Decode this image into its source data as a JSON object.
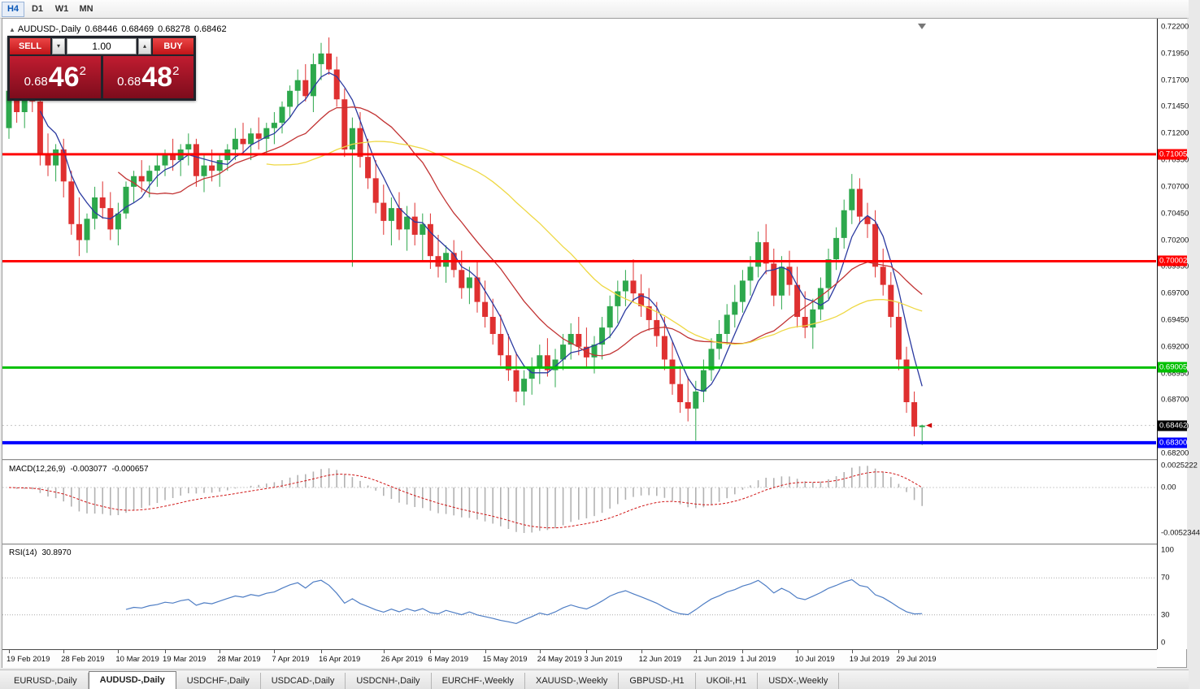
{
  "window": {
    "timeframes": [
      {
        "label": "H4",
        "active": true
      },
      {
        "label": "D1",
        "active": false
      },
      {
        "label": "W1",
        "active": false
      },
      {
        "label": "MN",
        "active": false
      }
    ]
  },
  "icons": {
    "instrument": "▲",
    "spinner_down": "▾",
    "spinner_up": "▴"
  },
  "quote_bar": {
    "symbol": "AUDUSD-,Daily",
    "open": "0.68446",
    "high": "0.68469",
    "low": "0.68278",
    "close": "0.68462"
  },
  "trade_panel": {
    "sell_label": "SELL",
    "buy_label": "BUY",
    "volume": "1.00",
    "sell_price": {
      "prefix": "0.68",
      "big": "46",
      "sup": "2"
    },
    "buy_price": {
      "prefix": "0.68",
      "big": "48",
      "sup": "2"
    }
  },
  "indicators": {
    "macd": {
      "label": "MACD(12,26,9)",
      "value_main": "-0.003077",
      "value_signal": "-0.000657",
      "axis_labels": [
        "0.0025222",
        "0.00",
        "-0.0052344"
      ]
    },
    "rsi": {
      "label": "RSI(14)",
      "value": "30.8970",
      "axis_labels": [
        "100",
        "70",
        "30",
        "0"
      ]
    }
  },
  "tabs": [
    {
      "label": "EURUSD-,Daily",
      "active": false
    },
    {
      "label": "AUDUSD-,Daily",
      "active": true
    },
    {
      "label": "USDCHF-,Daily",
      "active": false
    },
    {
      "label": "USDCAD-,Daily",
      "active": false
    },
    {
      "label": "USDCNH-,Daily",
      "active": false
    },
    {
      "label": "EURCHF-,Weekly",
      "active": false
    },
    {
      "label": "XAUUSD-,Weekly",
      "active": false
    },
    {
      "label": "GBPUSD-,H1",
      "active": false
    },
    {
      "label": "UKOil-,H1",
      "active": false
    },
    {
      "label": "USDX-,Weekly",
      "active": false
    }
  ],
  "chart_data": {
    "type": "candlestick",
    "symbol": "AUDUSD-,Daily",
    "y_axis": {
      "min": 0.682,
      "max": 0.722,
      "tick_labels": [
        "0.72200",
        "0.71950",
        "0.71700",
        "0.71450",
        "0.71200",
        "0.70950",
        "0.70700",
        "0.70450",
        "0.70200",
        "0.69950",
        "0.69700",
        "0.69450",
        "0.69200",
        "0.68950",
        "0.68700",
        "0.68450",
        "0.68200"
      ]
    },
    "x_ticks": [
      {
        "bar": 0,
        "label": "19 Feb 2019"
      },
      {
        "bar": 7,
        "label": "28 Feb 2019"
      },
      {
        "bar": 14,
        "label": "10 Mar 2019"
      },
      {
        "bar": 20,
        "label": "19 Mar 2019"
      },
      {
        "bar": 27,
        "label": "28 Mar 2019"
      },
      {
        "bar": 34,
        "label": "7 Apr 2019"
      },
      {
        "bar": 40,
        "label": "16 Apr 2019"
      },
      {
        "bar": 48,
        "label": "26 Apr 2019"
      },
      {
        "bar": 54,
        "label": "6 May 2019"
      },
      {
        "bar": 61,
        "label": "15 May 2019"
      },
      {
        "bar": 68,
        "label": "24 May 2019"
      },
      {
        "bar": 74,
        "label": "3 Jun 2019"
      },
      {
        "bar": 81,
        "label": "12 Jun 2019"
      },
      {
        "bar": 88,
        "label": "21 Jun 2019"
      },
      {
        "bar": 94,
        "label": "1 Jul 2019"
      },
      {
        "bar": 101,
        "label": "10 Jul 2019"
      },
      {
        "bar": 108,
        "label": "19 Jul 2019"
      },
      {
        "bar": 114,
        "label": "29 Jul 2019"
      }
    ],
    "candles": [
      [
        0.7125,
        0.717,
        0.7115,
        0.716
      ],
      [
        0.716,
        0.7172,
        0.713,
        0.714
      ],
      [
        0.714,
        0.7165,
        0.7125,
        0.7155
      ],
      [
        0.7155,
        0.717,
        0.714,
        0.715
      ],
      [
        0.715,
        0.716,
        0.709,
        0.71
      ],
      [
        0.71,
        0.712,
        0.708,
        0.709
      ],
      [
        0.709,
        0.711,
        0.7075,
        0.7105
      ],
      [
        0.7105,
        0.7115,
        0.706,
        0.7075
      ],
      [
        0.7075,
        0.7085,
        0.7025,
        0.7035
      ],
      [
        0.7035,
        0.706,
        0.7005,
        0.702
      ],
      [
        0.702,
        0.7045,
        0.7008,
        0.704
      ],
      [
        0.704,
        0.707,
        0.703,
        0.706
      ],
      [
        0.706,
        0.7075,
        0.704,
        0.705
      ],
      [
        0.705,
        0.7065,
        0.702,
        0.703
      ],
      [
        0.703,
        0.7055,
        0.7015,
        0.7045
      ],
      [
        0.7045,
        0.7075,
        0.704,
        0.707
      ],
      [
        0.707,
        0.7085,
        0.7055,
        0.708
      ],
      [
        0.708,
        0.7095,
        0.7065,
        0.7075
      ],
      [
        0.7075,
        0.709,
        0.706,
        0.7085
      ],
      [
        0.7085,
        0.71,
        0.707,
        0.709
      ],
      [
        0.709,
        0.7105,
        0.708,
        0.71
      ],
      [
        0.71,
        0.7115,
        0.7085,
        0.7095
      ],
      [
        0.7095,
        0.711,
        0.708,
        0.7105
      ],
      [
        0.7105,
        0.712,
        0.709,
        0.711
      ],
      [
        0.711,
        0.7115,
        0.707,
        0.708
      ],
      [
        0.708,
        0.71,
        0.7065,
        0.709
      ],
      [
        0.709,
        0.7105,
        0.7075,
        0.7085
      ],
      [
        0.7085,
        0.71,
        0.707,
        0.7095
      ],
      [
        0.7095,
        0.711,
        0.7085,
        0.7105
      ],
      [
        0.7105,
        0.7125,
        0.7095,
        0.7115
      ],
      [
        0.7115,
        0.713,
        0.71,
        0.711
      ],
      [
        0.711,
        0.7125,
        0.7095,
        0.712
      ],
      [
        0.712,
        0.7135,
        0.7105,
        0.7115
      ],
      [
        0.7115,
        0.713,
        0.71,
        0.7125
      ],
      [
        0.7125,
        0.714,
        0.711,
        0.713
      ],
      [
        0.713,
        0.715,
        0.712,
        0.7145
      ],
      [
        0.7145,
        0.7165,
        0.7135,
        0.716
      ],
      [
        0.716,
        0.718,
        0.7145,
        0.717
      ],
      [
        0.717,
        0.7185,
        0.715,
        0.7155
      ],
      [
        0.7155,
        0.7195,
        0.714,
        0.7185
      ],
      [
        0.7185,
        0.7205,
        0.717,
        0.7195
      ],
      [
        0.7195,
        0.721,
        0.7175,
        0.718
      ],
      [
        0.718,
        0.7192,
        0.7145,
        0.7152
      ],
      [
        0.7152,
        0.7162,
        0.7098,
        0.7105
      ],
      [
        0.7105,
        0.7135,
        0.6995,
        0.7125
      ],
      [
        0.7125,
        0.714,
        0.7088,
        0.7098
      ],
      [
        0.7098,
        0.7115,
        0.7068,
        0.7078
      ],
      [
        0.7078,
        0.7095,
        0.7045,
        0.7055
      ],
      [
        0.7055,
        0.7072,
        0.7025,
        0.7038
      ],
      [
        0.7038,
        0.706,
        0.7015,
        0.705
      ],
      [
        0.705,
        0.7065,
        0.702,
        0.703
      ],
      [
        0.703,
        0.7052,
        0.701,
        0.7042
      ],
      [
        0.7042,
        0.7055,
        0.7015,
        0.7025
      ],
      [
        0.7025,
        0.7045,
        0.7,
        0.7035
      ],
      [
        0.7035,
        0.7045,
        0.6993,
        0.7005
      ],
      [
        0.7005,
        0.7025,
        0.6985,
        0.6995
      ],
      [
        0.6995,
        0.7015,
        0.698,
        0.7008
      ],
      [
        0.7008,
        0.702,
        0.6985,
        0.6992
      ],
      [
        0.6992,
        0.701,
        0.6965,
        0.6975
      ],
      [
        0.6975,
        0.6995,
        0.696,
        0.6985
      ],
      [
        0.6985,
        0.7,
        0.6952,
        0.6962
      ],
      [
        0.6962,
        0.6982,
        0.6938,
        0.6948
      ],
      [
        0.6948,
        0.6965,
        0.6922,
        0.6932
      ],
      [
        0.6932,
        0.695,
        0.6902,
        0.6912
      ],
      [
        0.6912,
        0.6932,
        0.6888,
        0.6898
      ],
      [
        0.6898,
        0.6915,
        0.6868,
        0.6878
      ],
      [
        0.6878,
        0.6898,
        0.6865,
        0.689
      ],
      [
        0.689,
        0.691,
        0.6875,
        0.69
      ],
      [
        0.69,
        0.6922,
        0.6885,
        0.6912
      ],
      [
        0.6912,
        0.6928,
        0.6892,
        0.6898
      ],
      [
        0.6898,
        0.6918,
        0.6882,
        0.6908
      ],
      [
        0.6908,
        0.6932,
        0.6898,
        0.6922
      ],
      [
        0.6922,
        0.6942,
        0.6908,
        0.6932
      ],
      [
        0.6932,
        0.6948,
        0.6912,
        0.692
      ],
      [
        0.692,
        0.6938,
        0.69,
        0.691
      ],
      [
        0.691,
        0.693,
        0.6895,
        0.6922
      ],
      [
        0.6922,
        0.6948,
        0.6908,
        0.6938
      ],
      [
        0.6938,
        0.6968,
        0.6928,
        0.6958
      ],
      [
        0.6958,
        0.6982,
        0.6942,
        0.6972
      ],
      [
        0.6972,
        0.6992,
        0.6958,
        0.6982
      ],
      [
        0.6982,
        0.7002,
        0.6962,
        0.697
      ],
      [
        0.697,
        0.6988,
        0.6948,
        0.6958
      ],
      [
        0.6958,
        0.6975,
        0.6935,
        0.6945
      ],
      [
        0.6945,
        0.6962,
        0.692,
        0.693
      ],
      [
        0.693,
        0.6948,
        0.6898,
        0.6908
      ],
      [
        0.6908,
        0.6925,
        0.6875,
        0.6885
      ],
      [
        0.6885,
        0.6902,
        0.6858,
        0.6868
      ],
      [
        0.6868,
        0.6892,
        0.685,
        0.6862
      ],
      [
        0.6862,
        0.6888,
        0.6832,
        0.6878
      ],
      [
        0.6878,
        0.6908,
        0.6868,
        0.6898
      ],
      [
        0.6898,
        0.6928,
        0.6888,
        0.6918
      ],
      [
        0.6918,
        0.6945,
        0.6908,
        0.6932
      ],
      [
        0.6932,
        0.696,
        0.6922,
        0.695
      ],
      [
        0.695,
        0.6978,
        0.6938,
        0.6962
      ],
      [
        0.6962,
        0.6992,
        0.6952,
        0.6982
      ],
      [
        0.6982,
        0.7005,
        0.6968,
        0.6995
      ],
      [
        0.6995,
        0.7028,
        0.6985,
        0.7018
      ],
      [
        0.7018,
        0.7035,
        0.6988,
        0.6998
      ],
      [
        0.6998,
        0.7012,
        0.6958,
        0.6968
      ],
      [
        0.6968,
        0.7005,
        0.6955,
        0.6995
      ],
      [
        0.6995,
        0.701,
        0.6968,
        0.6978
      ],
      [
        0.6978,
        0.6995,
        0.6938,
        0.6948
      ],
      [
        0.6948,
        0.6972,
        0.6928,
        0.6938
      ],
      [
        0.6938,
        0.6965,
        0.6918,
        0.6955
      ],
      [
        0.6955,
        0.6985,
        0.6945,
        0.6975
      ],
      [
        0.6975,
        0.7012,
        0.6965,
        0.7002
      ],
      [
        0.7002,
        0.7032,
        0.6992,
        0.7022
      ],
      [
        0.7022,
        0.7058,
        0.7012,
        0.7048
      ],
      [
        0.7048,
        0.7082,
        0.7035,
        0.7068
      ],
      [
        0.7068,
        0.7078,
        0.7035,
        0.7042
      ],
      [
        0.7042,
        0.7055,
        0.7022,
        0.7035
      ],
      [
        0.7035,
        0.7048,
        0.6985,
        0.6995
      ],
      [
        0.6995,
        0.7012,
        0.6968,
        0.6978
      ],
      [
        0.6978,
        0.699,
        0.6938,
        0.6948
      ],
      [
        0.6948,
        0.6962,
        0.6898,
        0.6908
      ],
      [
        0.6908,
        0.692,
        0.6858,
        0.6868
      ],
      [
        0.6868,
        0.6878,
        0.6836,
        0.6845
      ],
      [
        0.68446,
        0.68469,
        0.68278,
        0.68462
      ]
    ],
    "style": {
      "bull_color": "#2DA84C",
      "bear_color": "#DF3030"
    },
    "moving_averages": [
      {
        "period": 5,
        "color": "#2B3AA0"
      },
      {
        "period": 15,
        "color": "#C23434"
      },
      {
        "period": 34,
        "color": "#EED843"
      }
    ],
    "horizontal_lines": [
      {
        "price": 0.71005,
        "label": "0.71005",
        "color": "#FF0000",
        "width": 3
      },
      {
        "price": 0.70002,
        "label": "0.70002",
        "color": "#FF0000",
        "width": 3
      },
      {
        "price": 0.69005,
        "label": "0.69005",
        "color": "#00C000",
        "width": 3
      },
      {
        "price": 0.683,
        "label": "0.68300",
        "color": "#0000FF",
        "width": 4
      }
    ],
    "bid": {
      "price": 0.68462,
      "label": "0.68462"
    },
    "macd": {
      "params": [
        12,
        26,
        9
      ]
    },
    "rsi": {
      "period": 14,
      "levels": [
        70,
        30
      ]
    }
  }
}
